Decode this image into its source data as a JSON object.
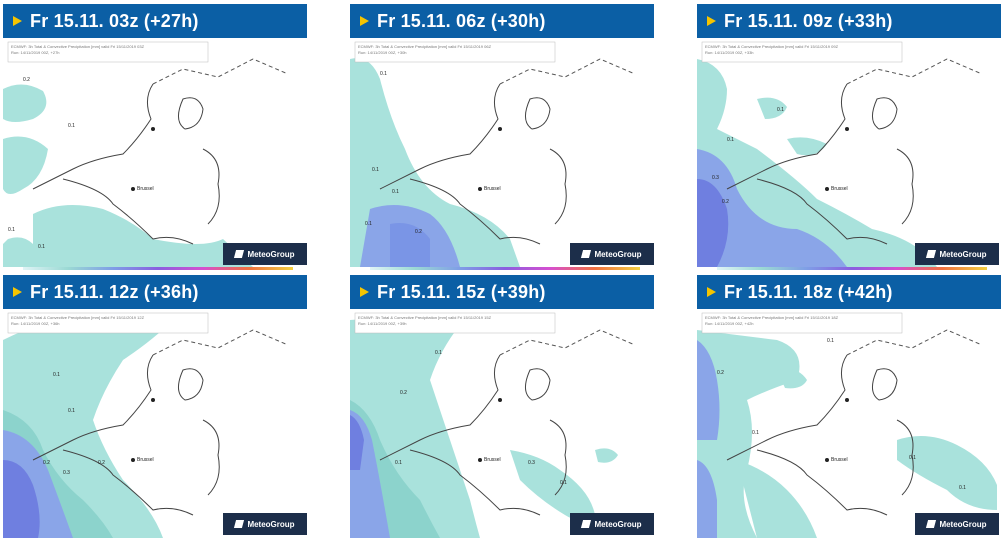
{
  "panels": [
    {
      "title": "Fr 15.11. 03z (+27h)",
      "city": "Brussel",
      "logo": "MeteoGroup",
      "header_line1": "ECMWF: 3h Total & Convective Precipitation [mm] valid Fri 15/11/2019 03Z",
      "header_line2": "Run: 14/11/2019 00Z, +27h",
      "value_labels": [
        "0.2",
        "0.1",
        "0.1",
        "0.1"
      ]
    },
    {
      "title": "Fr 15.11. 06z (+30h)",
      "city": "Brussel",
      "logo": "MeteoGroup",
      "header_line1": "ECMWF: 3h Total & Convective Precipitation [mm] valid Fri 15/11/2019 06Z",
      "header_line2": "Run: 14/11/2019 00Z, +30h",
      "value_labels": [
        "0.1",
        "0.1",
        "0.1",
        "0.1",
        "0.2"
      ]
    },
    {
      "title": "Fr 15.11. 09z (+33h)",
      "city": "Brussel",
      "logo": "MeteoGroup",
      "header_line1": "ECMWF: 3h Total & Convective Precipitation [mm] valid Fri 15/11/2019 09Z",
      "header_line2": "Run: 14/11/2019 00Z, +33h",
      "value_labels": [
        "0.1",
        "0.1",
        "0.3",
        "0.2"
      ]
    },
    {
      "title": "Fr 15.11. 12z (+36h)",
      "city": "Brussel",
      "logo": "MeteoGroup",
      "header_line1": "ECMWF: 3h Total & Convective Precipitation [mm] valid Fri 15/11/2019 12Z",
      "header_line2": "Run: 14/11/2019 00Z, +36h",
      "value_labels": [
        "0.1",
        "0.1",
        "0.2",
        "0.3",
        "0.2"
      ]
    },
    {
      "title": "Fr 15.11. 15z (+39h)",
      "city": "Brussel",
      "logo": "MeteoGroup",
      "header_line1": "ECMWF: 3h Total & Convective Precipitation [mm] valid Fri 15/11/2019 15Z",
      "header_line2": "Run: 14/11/2019 00Z, +39h",
      "value_labels": [
        "0.1",
        "0.2",
        "0.1",
        "0.3",
        "0.1"
      ]
    },
    {
      "title": "Fr 15.11. 18z (+42h)",
      "city": "Brussel",
      "logo": "MeteoGroup",
      "header_line1": "ECMWF: 3h Total & Convective Precipitation [mm] valid Fri 15/11/2019 18Z",
      "header_line2": "Run: 14/11/2019 00Z, +42h",
      "value_labels": [
        "0.1",
        "0.2",
        "0.1",
        "0.1",
        "0.1"
      ]
    }
  ],
  "colors": {
    "header_bg": "#0b5fa5",
    "header_text": "#ffffff",
    "arrow": "#f5c400",
    "precip_light": "#a9e2dc",
    "precip_mid": "#8cd3cc",
    "precip_blue": "#8aa5e8",
    "precip_strong": "#6f7fe0",
    "logo_bg": "#1c2e4a"
  },
  "icons": {
    "header_arrow": "play-arrow-icon",
    "logo_mark": "meteogroup-logo-icon",
    "city_marker": "city-dot-icon"
  }
}
